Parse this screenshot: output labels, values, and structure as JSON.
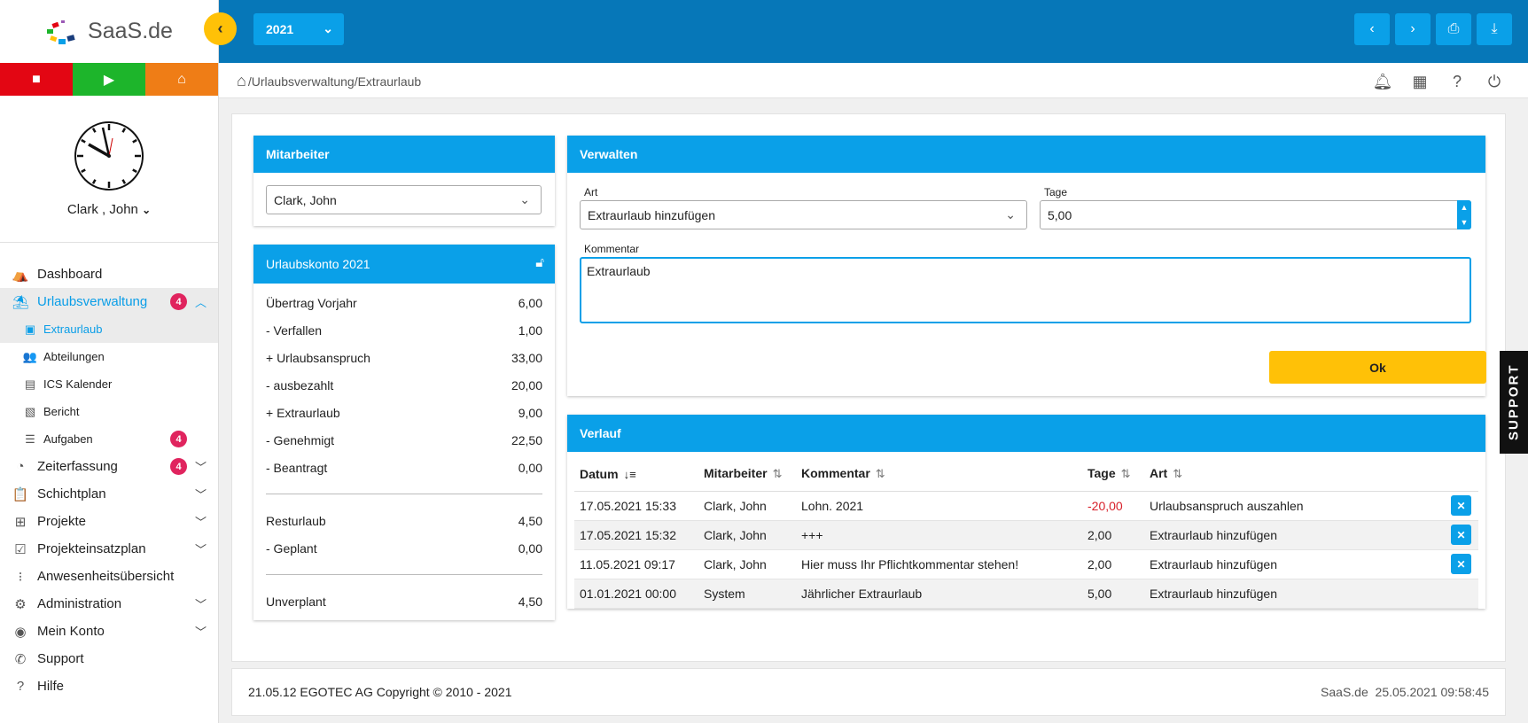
{
  "app": {
    "logo_text": "SaaS.de"
  },
  "sidebar": {
    "user_name": "Clark , John",
    "nav": [
      {
        "label": "Dashboard"
      },
      {
        "label": "Urlaubsverwaltung",
        "badge": "4"
      },
      {
        "label": "Zeiterfassung",
        "badge": "4"
      },
      {
        "label": "Schichtplan"
      },
      {
        "label": "Projekte"
      },
      {
        "label": "Projekteinsatzplan"
      },
      {
        "label": "Anwesenheitsübersicht"
      },
      {
        "label": "Administration"
      },
      {
        "label": "Mein Konto"
      },
      {
        "label": "Support"
      },
      {
        "label": "Hilfe"
      }
    ],
    "subnav": [
      {
        "label": "Extraurlaub"
      },
      {
        "label": "Abteilungen"
      },
      {
        "label": "ICS Kalender"
      },
      {
        "label": "Bericht"
      },
      {
        "label": "Aufgaben",
        "badge": "4"
      }
    ]
  },
  "topbar": {
    "year": "2021"
  },
  "breadcrumb": "/Urlaubsverwaltung/Extraurlaub",
  "mitarbeiter": {
    "title": "Mitarbeiter",
    "selected": "Clark, John"
  },
  "konto": {
    "title": "Urlaubskonto 2021",
    "rows": [
      {
        "label": "Übertrag Vorjahr",
        "value": "6,00"
      },
      {
        "label": "- Verfallen",
        "value": "1,00"
      },
      {
        "label": "+ Urlaubsanspruch",
        "value": "33,00"
      },
      {
        "label": "- ausbezahlt",
        "value": "20,00"
      },
      {
        "label": "+ Extraurlaub",
        "value": "9,00"
      },
      {
        "label": "- Genehmigt",
        "value": "22,50"
      },
      {
        "label": "- Beantragt",
        "value": "0,00"
      }
    ],
    "rest": [
      {
        "label": "Resturlaub",
        "value": "4,50"
      },
      {
        "label": "- Geplant",
        "value": "0,00"
      }
    ],
    "unverplant": {
      "label": "Unverplant",
      "value": "4,50"
    }
  },
  "verwalten": {
    "title": "Verwalten",
    "art_label": "Art",
    "art_value": "Extraurlaub hinzufügen",
    "tage_label": "Tage",
    "tage_value": "5,00",
    "kommentar_label": "Kommentar",
    "kommentar_value": "Extraurlaub",
    "ok_label": "Ok"
  },
  "verlauf": {
    "title": "Verlauf",
    "columns": [
      "Datum",
      "Mitarbeiter",
      "Kommentar",
      "Tage",
      "Art"
    ],
    "rows": [
      {
        "datum": "17.05.2021 15:33",
        "mitarbeiter": "Clark, John",
        "kommentar": "Lohn. 2021",
        "tage": "-20,00",
        "art": "Urlaubsanspruch auszahlen"
      },
      {
        "datum": "17.05.2021 15:32",
        "mitarbeiter": "Clark, John",
        "kommentar": "+++",
        "tage": "2,00",
        "art": "Extraurlaub hinzufügen"
      },
      {
        "datum": "11.05.2021 09:17",
        "mitarbeiter": "Clark, John",
        "kommentar": "Hier muss Ihr Pflichtkommentar stehen!",
        "tage": "2,00",
        "art": "Extraurlaub hinzufügen"
      },
      {
        "datum": "01.01.2021 00:00",
        "mitarbeiter": "System",
        "kommentar": "Jährlicher Extraurlaub",
        "tage": "5,00",
        "art": "Extraurlaub hinzufügen"
      }
    ]
  },
  "footer": {
    "left": "21.05.12 EGOTEC AG Copyright © 2010 - 2021",
    "brand": "SaaS.de",
    "timestamp": "25.05.2021 09:58:45"
  },
  "support_tab": "SUPPORT"
}
